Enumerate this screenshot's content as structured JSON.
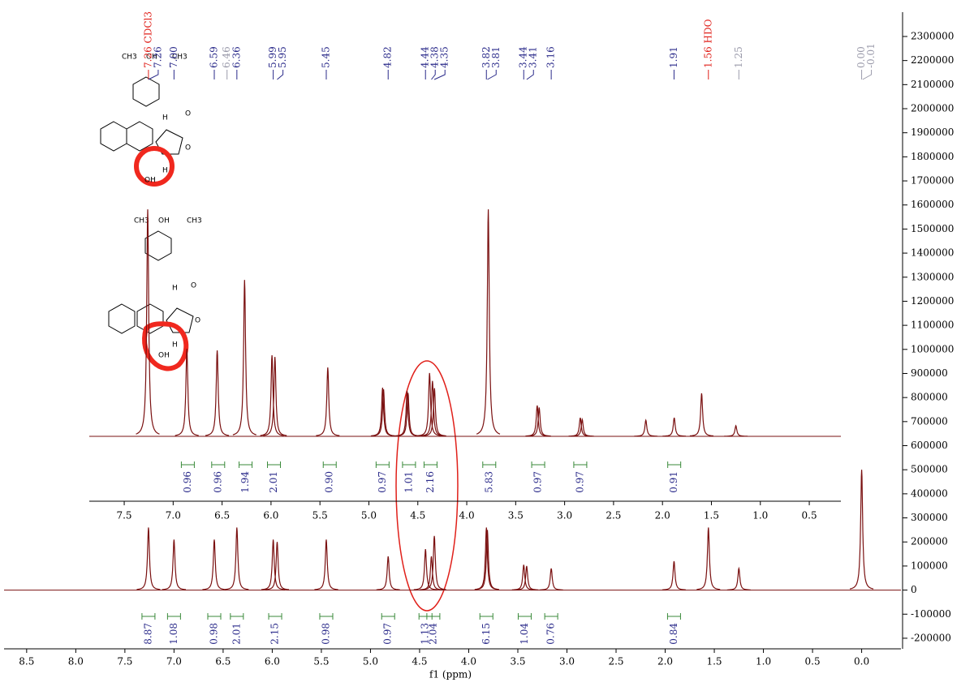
{
  "chart_data": [
    {
      "type": "nmr",
      "x_label": "f1 (ppm)",
      "color": "#7a1010",
      "xlim": [
        8.73,
        -0.4
      ],
      "ylim": [
        -244000,
        2401000
      ],
      "xticks": [
        {
          "value": 8.5,
          "label": "8.5"
        },
        {
          "value": 8,
          "label": "8.0"
        },
        {
          "value": 7.5,
          "label": "7.5"
        },
        {
          "value": 7,
          "label": "7.0"
        },
        {
          "value": 6.5,
          "label": "6.5"
        },
        {
          "value": 6,
          "label": "6.0"
        },
        {
          "value": 5.5,
          "label": "5.5"
        },
        {
          "value": 5,
          "label": "5.0"
        },
        {
          "value": 4.5,
          "label": "4.5"
        },
        {
          "value": 4,
          "label": "4.0"
        },
        {
          "value": 3.5,
          "label": "3.5"
        },
        {
          "value": 3,
          "label": "3.0"
        },
        {
          "value": 2.5,
          "label": "2.5"
        },
        {
          "value": 2,
          "label": "2.0"
        },
        {
          "value": 1.5,
          "label": "1.5"
        },
        {
          "value": 1,
          "label": "1.0"
        },
        {
          "value": 0.5,
          "label": "0.5"
        },
        {
          "value": 0,
          "label": "0.0"
        }
      ],
      "yticks": [
        2300000,
        2200000,
        2100000,
        2000000,
        1900000,
        1800000,
        1700000,
        1600000,
        1500000,
        1400000,
        1300000,
        1200000,
        1100000,
        1000000,
        900000,
        800000,
        700000,
        600000,
        500000,
        400000,
        300000,
        200000,
        100000,
        0,
        -100000,
        -200000
      ],
      "x": [
        7.26,
        7.0,
        6.59,
        6.36,
        5.99,
        5.95,
        5.45,
        4.82,
        4.44,
        4.38,
        4.35,
        3.82,
        3.81,
        3.44,
        3.41,
        3.16,
        1.91,
        1.56,
        1.25,
        0.0
      ],
      "values": [
        260000,
        210000,
        210000,
        260000,
        210000,
        200000,
        210000,
        140000,
        170000,
        140000,
        225000,
        260000,
        250000,
        105000,
        100000,
        90000,
        120000,
        260000,
        90000,
        500000
      ],
      "peak_labels": [
        {
          "value": 7.26,
          "label": "7.26 CDCl3"
        },
        {
          "value": 7.26,
          "label": "7.26"
        },
        {
          "value": 7.0,
          "label": "7.00"
        },
        {
          "value": 6.59,
          "label": "6.59"
        },
        {
          "value": 6.46,
          "label": "6.46"
        },
        {
          "value": 6.36,
          "label": "6.36"
        },
        {
          "value": 5.99,
          "label": "5.99"
        },
        {
          "value": 5.95,
          "label": "5.95"
        },
        {
          "value": 5.45,
          "label": "5.45"
        },
        {
          "value": 4.82,
          "label": "4.82"
        },
        {
          "value": 4.44,
          "label": "4.44"
        },
        {
          "value": 4.38,
          "label": "4.38"
        },
        {
          "value": 4.35,
          "label": "4.35"
        },
        {
          "value": 3.82,
          "label": "3.82"
        },
        {
          "value": 3.81,
          "label": "3.81"
        },
        {
          "value": 3.44,
          "label": "3.44"
        },
        {
          "value": 3.41,
          "label": "3.41"
        },
        {
          "value": 3.16,
          "label": "3.16"
        },
        {
          "value": 1.91,
          "label": "1.91"
        },
        {
          "value": 1.56,
          "label": "1.56 HDO"
        },
        {
          "value": 1.25,
          "label": "1.25"
        },
        {
          "value": 0.0,
          "label": "0.00"
        },
        {
          "value": -0.01,
          "label": "-0.01"
        }
      ],
      "peak_label_colors": [
        "#e0201a",
        "#2a2a8a",
        "#2a2a8a",
        "#2a2a8a",
        "#9a9aaa",
        "#2a2a8a",
        "#2a2a8a",
        "#2a2a8a",
        "#2a2a8a",
        "#2a2a8a",
        "#2a2a8a",
        "#2a2a8a",
        "#2a2a8a",
        "#2a2a8a",
        "#2a2a8a",
        "#2a2a8a",
        "#2a2a8a",
        "#2a2a8a",
        "#2a2a8a",
        "#e0201a",
        "#9a9aaa",
        "#9a9aaa",
        "#9a9aaa"
      ],
      "integral_x": [
        7.26,
        7.0,
        6.59,
        6.36,
        5.97,
        5.45,
        4.82,
        4.44,
        4.36,
        3.82,
        3.43,
        3.16,
        1.91
      ],
      "integrals": [
        8.87,
        1.08,
        0.98,
        2.01,
        2.15,
        0.98,
        0.97,
        1.13,
        2.04,
        6.15,
        1.04,
        0.76,
        0.84
      ],
      "integral_labels": [
        "8.87",
        "1.08",
        "0.98",
        "2.01",
        "2.15",
        "0.98",
        "0.97",
        "1.13",
        "2.04",
        "6.15",
        "1.04",
        "0.76",
        "0.84"
      ]
    },
    {
      "type": "nmr",
      "color": "#7a1010",
      "xlim": [
        7.857,
        0.177
      ],
      "xticks": [
        {
          "value": 7.5,
          "label": "7.5"
        },
        {
          "value": 7,
          "label": "7.0"
        },
        {
          "value": 6.5,
          "label": "6.5"
        },
        {
          "value": 6,
          "label": "6.0"
        },
        {
          "value": 5.5,
          "label": "5.5"
        },
        {
          "value": 5,
          "label": "5.0"
        },
        {
          "value": 4.5,
          "label": "4.5"
        },
        {
          "value": 4,
          "label": "4.0"
        },
        {
          "value": 3.5,
          "label": "3.5"
        },
        {
          "value": 3,
          "label": "3.0"
        },
        {
          "value": 2.5,
          "label": "2.5"
        },
        {
          "value": 2,
          "label": "2.0"
        },
        {
          "value": 1.5,
          "label": "1.5"
        },
        {
          "value": 1,
          "label": "1.0"
        },
        {
          "value": 0.5,
          "label": "0.5"
        }
      ],
      "x": [
        7.26,
        6.86,
        6.55,
        6.27,
        5.99,
        5.96,
        5.42,
        4.86,
        4.85,
        4.61,
        4.6,
        4.38,
        4.35,
        4.33,
        3.78,
        3.28,
        3.26,
        2.84,
        2.82,
        2.17,
        1.88,
        1.6,
        1.25
      ],
      "values": [
        943000,
        364000,
        357000,
        650000,
        337000,
        330000,
        286000,
        202000,
        195000,
        189000,
        180000,
        263000,
        230000,
        200000,
        943000,
        128000,
        120000,
        77000,
        70000,
        67000,
        77000,
        179000,
        44000
      ],
      "integral_x": [
        6.85,
        6.54,
        6.26,
        5.97,
        5.4,
        4.86,
        4.59,
        4.37,
        3.77,
        3.27,
        2.84,
        1.88
      ],
      "integrals": [
        0.96,
        0.96,
        1.94,
        2.01,
        0.9,
        0.97,
        1.01,
        2.16,
        5.83,
        0.97,
        0.97,
        0.91
      ],
      "integral_labels": [
        "0.96",
        "0.96",
        "1.94",
        "2.01",
        "0.90",
        "0.97",
        "1.01",
        "2.16",
        "5.83",
        "0.97",
        "0.97",
        "0.91"
      ]
    }
  ],
  "structures": [
    {
      "atoms": [
        "CH3",
        "OH",
        "CH3",
        "O",
        "O",
        "H",
        "H",
        "OH"
      ]
    },
    {
      "atoms": [
        "CH3",
        "OH",
        "CH3",
        "O",
        "O",
        "H",
        "H",
        "OH"
      ]
    }
  ]
}
